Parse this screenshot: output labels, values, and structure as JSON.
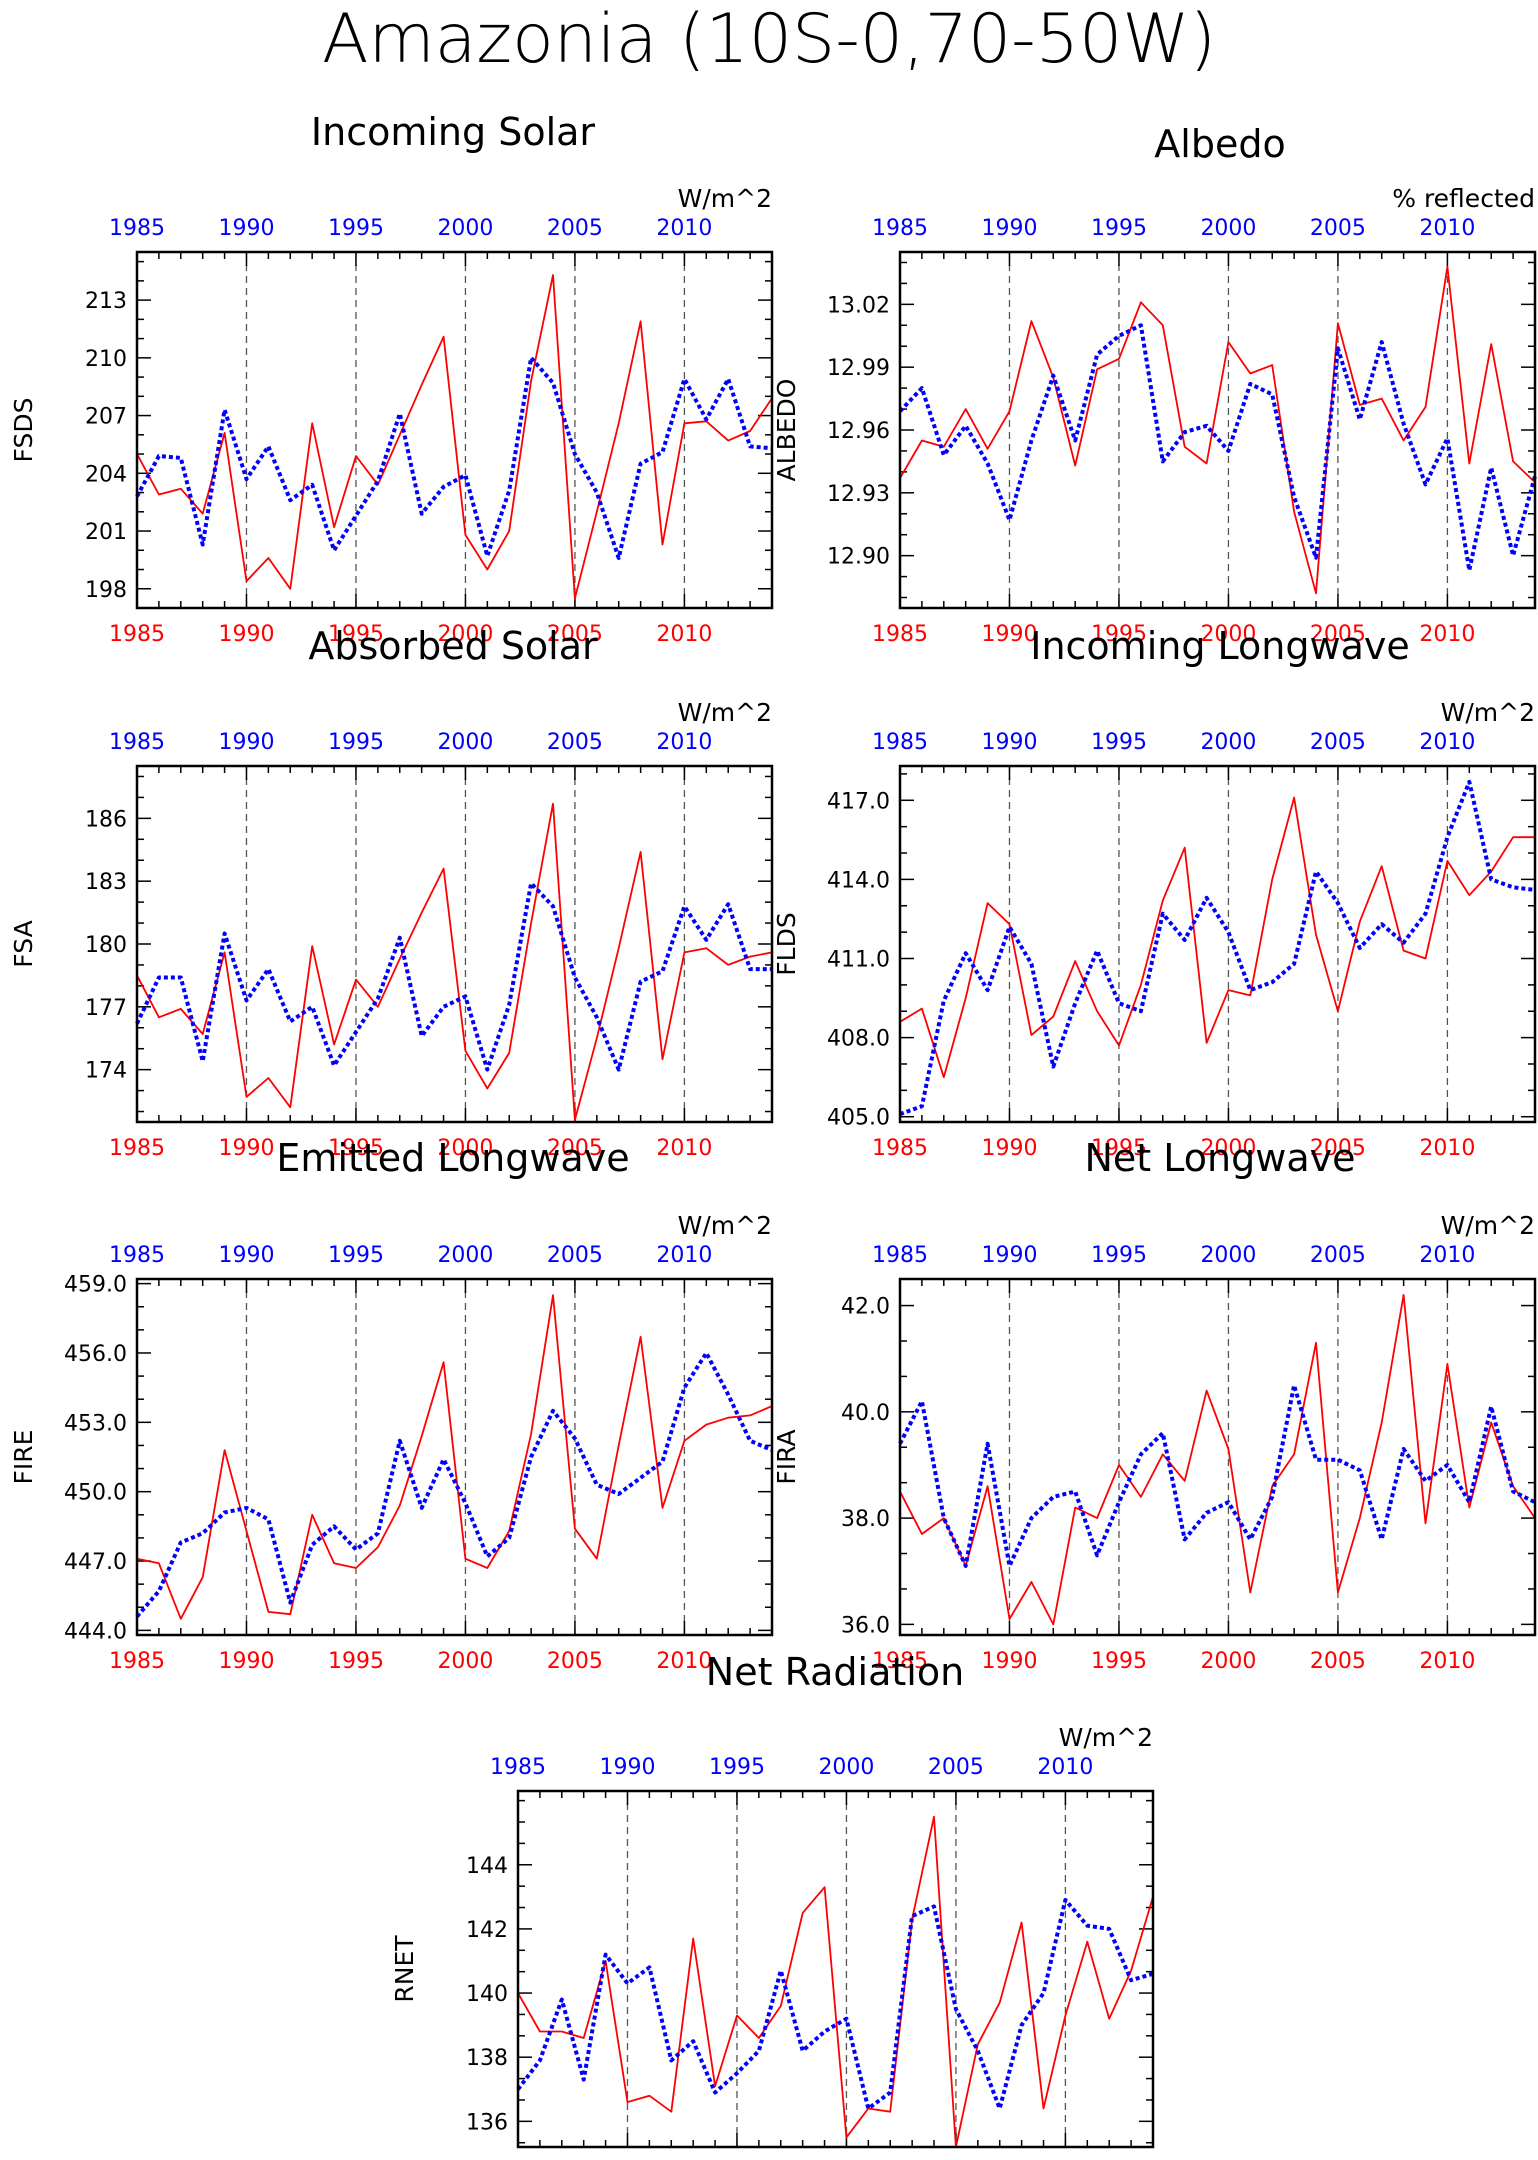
{
  "figure": {
    "title": "Amazonia (10S-0,70-50W)",
    "colors": {
      "series_bottom_axis": "#ff0000",
      "series_top_axis": "#0000ff",
      "frame": "#000000",
      "gridline": "#555555"
    }
  },
  "chart_data": [
    {
      "type": "line",
      "id": "fsds",
      "title": "Incoming Solar",
      "units": "W/m^2",
      "ylabel": "FSDS",
      "xlim": [
        1985,
        2014
      ],
      "ylim": [
        197,
        215.5
      ],
      "yticks": [
        198,
        201,
        204,
        207,
        210,
        213
      ],
      "ytick_labels": [
        "198",
        "201",
        "204",
        "207",
        "210",
        "213"
      ],
      "xticks": [
        1985,
        1990,
        1995,
        2000,
        2005,
        2010
      ],
      "x": [
        1985,
        1986,
        1987,
        1988,
        1989,
        1990,
        1991,
        1992,
        1993,
        1994,
        1995,
        1996,
        1997,
        1998,
        1999,
        2000,
        2001,
        2002,
        2003,
        2004,
        2005,
        2006,
        2007,
        2008,
        2009,
        2010,
        2011,
        2012,
        2013,
        2014
      ],
      "series": [
        {
          "axis": "bottom",
          "color": "#ff0000",
          "style": "solid",
          "values": [
            205.0,
            202.9,
            203.2,
            201.9,
            206.1,
            198.4,
            199.6,
            198.0,
            206.6,
            201.2,
            204.9,
            203.4,
            206.0,
            208.6,
            211.1,
            200.8,
            199.0,
            201.0,
            208.8,
            214.3,
            197.5,
            202.0,
            206.6,
            211.9,
            200.3,
            206.6,
            206.7,
            205.7,
            206.2,
            207.9
          ]
        },
        {
          "axis": "top",
          "color": "#0000ff",
          "style": "dotted",
          "values": [
            202.8,
            204.9,
            204.8,
            200.3,
            207.3,
            203.7,
            205.4,
            202.6,
            203.4,
            200.0,
            201.8,
            203.6,
            207.1,
            201.9,
            203.3,
            203.9,
            199.7,
            203.1,
            210.0,
            208.7,
            205.0,
            203.0,
            199.6,
            204.5,
            205.1,
            208.9,
            206.8,
            208.9,
            205.4,
            205.3
          ]
        }
      ]
    },
    {
      "type": "line",
      "id": "albedo",
      "title": "Albedo",
      "units": "% reflected",
      "ylabel": "ALBEDO",
      "xlim": [
        1985,
        2014
      ],
      "ylim": [
        12.875,
        13.045
      ],
      "yticks": [
        12.9,
        12.93,
        12.96,
        12.99,
        13.02
      ],
      "ytick_labels": [
        "12.90",
        "12.93",
        "12.96",
        "12.99",
        "13.02"
      ],
      "xticks": [
        1985,
        1990,
        1995,
        2000,
        2005,
        2010
      ],
      "x": [
        1985,
        1986,
        1987,
        1988,
        1989,
        1990,
        1991,
        1992,
        1993,
        1994,
        1995,
        1996,
        1997,
        1998,
        1999,
        2000,
        2001,
        2002,
        2003,
        2004,
        2005,
        2006,
        2007,
        2008,
        2009,
        2010,
        2011,
        2012,
        2013,
        2014
      ],
      "series": [
        {
          "axis": "bottom",
          "color": "#ff0000",
          "style": "solid",
          "values": [
            12.937,
            12.955,
            12.952,
            12.97,
            12.951,
            12.969,
            13.012,
            12.985,
            12.943,
            12.989,
            12.994,
            13.021,
            13.01,
            12.952,
            12.944,
            13.002,
            12.987,
            12.991,
            12.921,
            12.882,
            13.011,
            12.972,
            12.975,
            12.955,
            12.971,
            13.038,
            12.944,
            13.001,
            12.945,
            12.935
          ]
        },
        {
          "axis": "top",
          "color": "#0000ff",
          "style": "dotted",
          "values": [
            12.969,
            12.98,
            12.948,
            12.962,
            12.944,
            12.917,
            12.955,
            12.986,
            12.955,
            12.996,
            13.005,
            13.01,
            12.945,
            12.959,
            12.962,
            12.95,
            12.982,
            12.977,
            12.928,
            12.899,
            12.999,
            12.965,
            13.002,
            12.963,
            12.934,
            12.956,
            12.893,
            12.942,
            12.9,
            12.938
          ]
        }
      ]
    },
    {
      "type": "line",
      "id": "fsa",
      "title": "Absorbed Solar",
      "units": "W/m^2",
      "ylabel": "FSA",
      "xlim": [
        1985,
        2014
      ],
      "ylim": [
        171.5,
        188.5
      ],
      "yticks": [
        174,
        177,
        180,
        183,
        186
      ],
      "ytick_labels": [
        "174",
        "177",
        "180",
        "183",
        "186"
      ],
      "xticks": [
        1985,
        1990,
        1995,
        2000,
        2005,
        2010
      ],
      "x": [
        1985,
        1986,
        1987,
        1988,
        1989,
        1990,
        1991,
        1992,
        1993,
        1994,
        1995,
        1996,
        1997,
        1998,
        1999,
        2000,
        2001,
        2002,
        2003,
        2004,
        2005,
        2006,
        2007,
        2008,
        2009,
        2010,
        2011,
        2012,
        2013,
        2014
      ],
      "series": [
        {
          "axis": "bottom",
          "color": "#ff0000",
          "style": "solid",
          "values": [
            178.5,
            176.5,
            176.9,
            175.7,
            179.6,
            172.7,
            173.6,
            172.2,
            179.9,
            175.2,
            178.3,
            177.0,
            179.3,
            181.5,
            183.6,
            174.9,
            173.1,
            174.8,
            181.0,
            186.7,
            171.6,
            175.5,
            179.8,
            184.4,
            174.5,
            179.6,
            179.8,
            179.0,
            179.4,
            179.6
          ]
        },
        {
          "axis": "top",
          "color": "#0000ff",
          "style": "dotted",
          "values": [
            176.2,
            178.4,
            178.4,
            174.4,
            180.5,
            177.3,
            178.8,
            176.3,
            177.0,
            174.2,
            175.8,
            177.4,
            180.3,
            175.6,
            177.0,
            177.5,
            174.0,
            177.1,
            182.9,
            181.8,
            178.4,
            176.5,
            174.0,
            178.2,
            178.7,
            181.8,
            180.2,
            181.9,
            178.8,
            178.8
          ]
        }
      ]
    },
    {
      "type": "line",
      "id": "flds",
      "title": "Incoming Longwave",
      "units": "W/m^2",
      "ylabel": "FLDS",
      "xlim": [
        1985,
        2014
      ],
      "ylim": [
        404.8,
        418.3
      ],
      "yticks": [
        405.0,
        408.0,
        411.0,
        414.0,
        417.0
      ],
      "ytick_labels": [
        "405.0",
        "408.0",
        "411.0",
        "414.0",
        "417.0"
      ],
      "xticks": [
        1985,
        1990,
        1995,
        2000,
        2005,
        2010
      ],
      "x": [
        1985,
        1986,
        1987,
        1988,
        1989,
        1990,
        1991,
        1992,
        1993,
        1994,
        1995,
        1996,
        1997,
        1998,
        1999,
        2000,
        2001,
        2002,
        2003,
        2004,
        2005,
        2006,
        2007,
        2008,
        2009,
        2010,
        2011,
        2012,
        2013,
        2014
      ],
      "series": [
        {
          "axis": "bottom",
          "color": "#ff0000",
          "style": "solid",
          "values": [
            408.6,
            409.1,
            406.5,
            409.5,
            413.1,
            412.3,
            408.1,
            408.8,
            410.9,
            409.0,
            407.7,
            410.0,
            413.2,
            415.2,
            407.8,
            409.8,
            409.6,
            414.0,
            417.1,
            411.9,
            409.0,
            412.4,
            414.5,
            411.3,
            411.0,
            414.7,
            413.4,
            414.3,
            415.6,
            415.6
          ]
        },
        {
          "axis": "top",
          "color": "#0000ff",
          "style": "dotted",
          "values": [
            405.1,
            405.4,
            409.4,
            411.2,
            409.8,
            412.2,
            410.8,
            406.9,
            409.3,
            411.3,
            409.3,
            409.0,
            412.7,
            411.7,
            413.3,
            412.0,
            409.8,
            410.1,
            410.8,
            414.3,
            413.1,
            411.4,
            412.3,
            411.6,
            412.7,
            415.6,
            417.7,
            414.0,
            413.7,
            413.6
          ]
        }
      ]
    },
    {
      "type": "line",
      "id": "fire",
      "title": "Emitted Longwave",
      "units": "W/m^2",
      "ylabel": "FIRE",
      "xlim": [
        1985,
        2014
      ],
      "ylim": [
        443.8,
        459.2
      ],
      "yticks": [
        444.0,
        447.0,
        450.0,
        453.0,
        456.0,
        459.0
      ],
      "ytick_labels": [
        "444.0",
        "447.0",
        "450.0",
        "453.0",
        "456.0",
        "459.0"
      ],
      "xticks": [
        1985,
        1990,
        1995,
        2000,
        2005,
        2010
      ],
      "x": [
        1985,
        1986,
        1987,
        1988,
        1989,
        1990,
        1991,
        1992,
        1993,
        1994,
        1995,
        1996,
        1997,
        1998,
        1999,
        2000,
        2001,
        2002,
        2003,
        2004,
        2005,
        2006,
        2007,
        2008,
        2009,
        2010,
        2011,
        2012,
        2013,
        2014
      ],
      "series": [
        {
          "axis": "bottom",
          "color": "#ff0000",
          "style": "solid",
          "values": [
            447.1,
            446.9,
            444.5,
            446.3,
            451.8,
            448.3,
            444.8,
            444.7,
            449.0,
            446.9,
            446.7,
            447.6,
            449.4,
            452.4,
            455.6,
            447.1,
            446.7,
            448.3,
            452.5,
            458.5,
            448.4,
            447.1,
            452.0,
            456.7,
            449.3,
            452.2,
            452.9,
            453.2,
            453.3,
            453.7
          ]
        },
        {
          "axis": "top",
          "color": "#0000ff",
          "style": "dotted",
          "values": [
            444.6,
            445.7,
            447.8,
            448.2,
            449.1,
            449.3,
            448.8,
            445.2,
            447.7,
            448.5,
            447.5,
            448.2,
            452.2,
            449.3,
            451.4,
            449.5,
            447.2,
            448.0,
            451.5,
            453.5,
            452.3,
            450.3,
            449.9,
            450.6,
            451.3,
            454.5,
            456.0,
            454.2,
            452.2,
            451.8
          ]
        }
      ]
    },
    {
      "type": "line",
      "id": "fira",
      "title": "Net Longwave",
      "units": "W/m^2",
      "ylabel": "FIRA",
      "xlim": [
        1985,
        2014
      ],
      "ylim": [
        35.8,
        42.5
      ],
      "yticks": [
        36.0,
        38.0,
        40.0,
        42.0
      ],
      "ytick_labels": [
        "36.0",
        "38.0",
        "40.0",
        "42.0"
      ],
      "xticks": [
        1985,
        1990,
        1995,
        2000,
        2005,
        2010
      ],
      "x": [
        1985,
        1986,
        1987,
        1988,
        1989,
        1990,
        1991,
        1992,
        1993,
        1994,
        1995,
        1996,
        1997,
        1998,
        1999,
        2000,
        2001,
        2002,
        2003,
        2004,
        2005,
        2006,
        2007,
        2008,
        2009,
        2010,
        2011,
        2012,
        2013,
        2014
      ],
      "series": [
        {
          "axis": "bottom",
          "color": "#ff0000",
          "style": "solid",
          "values": [
            38.5,
            37.7,
            38.0,
            37.1,
            38.6,
            36.1,
            36.8,
            36.0,
            38.2,
            38.0,
            39.0,
            38.4,
            39.2,
            38.7,
            40.4,
            39.3,
            36.6,
            38.6,
            39.2,
            41.3,
            36.6,
            38.0,
            39.8,
            42.2,
            37.9,
            40.9,
            38.2,
            39.8,
            38.6,
            38.0
          ]
        },
        {
          "axis": "top",
          "color": "#0000ff",
          "style": "dotted",
          "values": [
            39.4,
            40.2,
            38.0,
            37.1,
            39.4,
            37.1,
            38.0,
            38.4,
            38.5,
            37.3,
            38.3,
            39.2,
            39.6,
            37.6,
            38.1,
            38.3,
            37.6,
            38.4,
            40.5,
            39.1,
            39.1,
            38.9,
            37.6,
            39.3,
            38.7,
            39.0,
            38.3,
            40.1,
            38.5,
            38.3
          ]
        }
      ]
    },
    {
      "type": "line",
      "id": "rnet",
      "title": "Net Radiation",
      "units": "W/m^2",
      "ylabel": "RNET",
      "xlim": [
        1985,
        2014
      ],
      "ylim": [
        135.2,
        146.3
      ],
      "yticks": [
        136,
        138,
        140,
        142,
        144
      ],
      "ytick_labels": [
        "136",
        "138",
        "140",
        "142",
        "144"
      ],
      "xticks": [
        1985,
        1990,
        1995,
        2000,
        2005,
        2010
      ],
      "x": [
        1985,
        1986,
        1987,
        1988,
        1989,
        1990,
        1991,
        1992,
        1993,
        1994,
        1995,
        1996,
        1997,
        1998,
        1999,
        2000,
        2001,
        2002,
        2003,
        2004,
        2005,
        2006,
        2007,
        2008,
        2009,
        2010,
        2011,
        2012,
        2013,
        2014
      ],
      "series": [
        {
          "axis": "bottom",
          "color": "#ff0000",
          "style": "solid",
          "values": [
            140.0,
            138.8,
            138.8,
            138.6,
            141.0,
            136.6,
            136.8,
            136.3,
            141.7,
            137.1,
            139.3,
            138.6,
            139.6,
            142.5,
            143.3,
            135.5,
            136.4,
            136.3,
            142.3,
            145.5,
            135.2,
            138.4,
            139.7,
            142.2,
            136.4,
            139.3,
            141.6,
            139.2,
            140.7,
            143.0
          ]
        },
        {
          "axis": "top",
          "color": "#0000ff",
          "style": "dotted",
          "values": [
            137.0,
            137.9,
            139.8,
            137.3,
            141.2,
            140.3,
            140.8,
            137.9,
            138.5,
            136.9,
            137.5,
            138.2,
            140.7,
            138.2,
            138.8,
            139.2,
            136.4,
            136.9,
            142.4,
            142.7,
            139.5,
            138.2,
            136.4,
            139.0,
            140.0,
            142.9,
            142.1,
            142.0,
            140.4,
            140.6
          ]
        }
      ]
    }
  ]
}
